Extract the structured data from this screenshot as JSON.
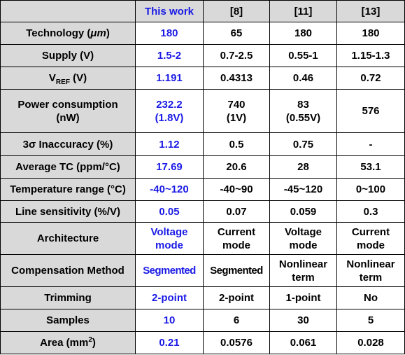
{
  "table": {
    "header": [
      "This work",
      "[8]",
      "[11]",
      "[13]"
    ],
    "rows": [
      {
        "label": [
          "Technology (",
          "μm",
          ")"
        ],
        "cells": [
          "180",
          "65",
          "180",
          "180"
        ]
      },
      {
        "label": "Supply (V)",
        "cells": [
          "1.5-2",
          "0.7-2.5",
          "0.55-1",
          "1.15-1.3"
        ]
      },
      {
        "label": [
          "V",
          "REF",
          " (V)"
        ],
        "cells": [
          "1.191",
          "0.4313",
          "0.46",
          "0.72"
        ]
      },
      {
        "label": "Power consumption\n(nW)",
        "cells": [
          "232.2\n(1.8V)",
          "740\n(1V)",
          "83\n(0.55V)",
          "576"
        ]
      },
      {
        "label": "3σ Inaccuracy (%)",
        "cells": [
          "1.12",
          "0.5",
          "0.75",
          "-"
        ]
      },
      {
        "label": "Average TC (ppm/°C)",
        "cells": [
          "17.69",
          "20.6",
          "28",
          "53.1"
        ]
      },
      {
        "label": "Temperature range (°C)",
        "cells": [
          "-40~120",
          "-40~90",
          "-45~120",
          "0~100"
        ]
      },
      {
        "label": "Line sensitivity (%/V)",
        "cells": [
          "0.05",
          "0.07",
          "0.059",
          "0.3"
        ]
      },
      {
        "label": "Architecture",
        "cells": [
          "Voltage\nmode",
          "Current\nmode",
          "Voltage\nmode",
          "Current\nmode"
        ]
      },
      {
        "label": "Compensation Method",
        "cells": [
          "Segmented",
          "Segmented",
          "Nonlinear\nterm",
          "Nonlinear\nterm"
        ]
      },
      {
        "label": "Trimming",
        "cells": [
          "2-point",
          "2-point",
          "1-point",
          "No"
        ]
      },
      {
        "label": "Samples",
        "cells": [
          "10",
          "6",
          "30",
          "5"
        ]
      },
      {
        "label": [
          "Area (mm",
          "2",
          ")"
        ],
        "cells": [
          "0.21",
          "0.0576",
          "0.061",
          "0.028"
        ]
      }
    ]
  }
}
